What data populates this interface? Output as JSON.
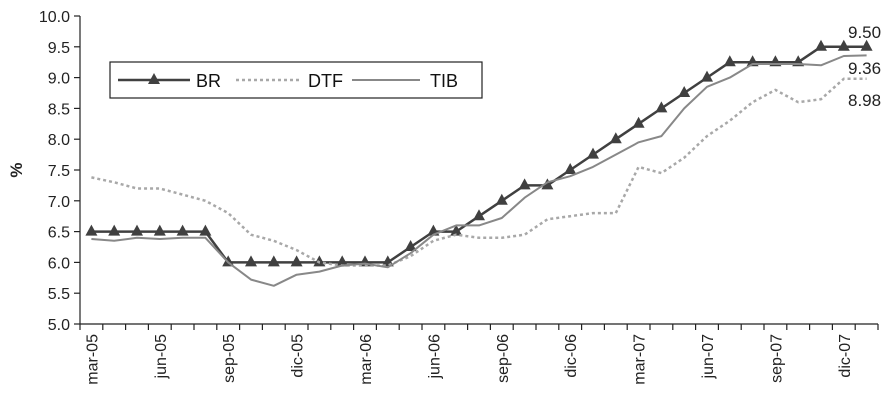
{
  "chart_data": {
    "type": "line",
    "title": "",
    "xlabel": "",
    "ylabel": "%",
    "ylim": [
      5.0,
      10.0
    ],
    "yticks": [
      "5.0",
      "5.5",
      "6.0",
      "6.5",
      "7.0",
      "7.5",
      "8.0",
      "8.5",
      "9.0",
      "9.5",
      "10.0"
    ],
    "x_tick_labels": [
      {
        "label": "mar-05",
        "index": 0
      },
      {
        "label": "jun-05",
        "index": 3
      },
      {
        "label": "sep-05",
        "index": 6
      },
      {
        "label": "dic-05",
        "index": 9
      },
      {
        "label": "mar-06",
        "index": 12
      },
      {
        "label": "jun-06",
        "index": 15
      },
      {
        "label": "sep-06",
        "index": 18
      },
      {
        "label": "dic-06",
        "index": 21
      },
      {
        "label": "mar-07",
        "index": 24
      },
      {
        "label": "jun-07",
        "index": 27
      },
      {
        "label": "sep-07",
        "index": 30
      },
      {
        "label": "dic-07",
        "index": 33
      }
    ],
    "grid": false,
    "legend_position": "top-left",
    "series": [
      {
        "name": "BR",
        "style": "solid-triangle",
        "color": "#404040",
        "values": [
          6.5,
          6.5,
          6.5,
          6.5,
          6.5,
          6.5,
          6.0,
          6.0,
          6.0,
          6.0,
          6.0,
          6.0,
          6.0,
          6.0,
          6.25,
          6.5,
          6.5,
          6.75,
          7.0,
          7.25,
          7.25,
          7.5,
          7.75,
          8.0,
          8.25,
          8.5,
          8.75,
          9.0,
          9.25,
          9.25,
          9.25,
          9.25,
          9.5,
          9.5,
          9.5
        ]
      },
      {
        "name": "DTF",
        "style": "dotted",
        "color": "#a8a8a8",
        "values": [
          7.38,
          7.3,
          7.2,
          7.2,
          7.1,
          7.0,
          6.8,
          6.45,
          6.35,
          6.2,
          6.0,
          5.95,
          5.95,
          5.95,
          6.1,
          6.35,
          6.45,
          6.4,
          6.4,
          6.45,
          6.7,
          6.75,
          6.8,
          6.8,
          7.55,
          7.45,
          7.7,
          8.05,
          8.3,
          8.6,
          8.8,
          8.6,
          8.65,
          8.98,
          8.98
        ]
      },
      {
        "name": "TIB",
        "style": "solid",
        "color": "#888888",
        "values": [
          6.38,
          6.35,
          6.4,
          6.38,
          6.4,
          6.4,
          6.0,
          5.72,
          5.62,
          5.8,
          5.85,
          5.95,
          5.98,
          5.92,
          6.15,
          6.45,
          6.6,
          6.6,
          6.72,
          7.05,
          7.3,
          7.4,
          7.55,
          7.75,
          7.95,
          8.05,
          8.5,
          8.85,
          9.0,
          9.22,
          9.22,
          9.22,
          9.2,
          9.35,
          9.36
        ]
      }
    ],
    "end_labels": [
      "9.50",
      "9.36",
      "8.98"
    ]
  }
}
